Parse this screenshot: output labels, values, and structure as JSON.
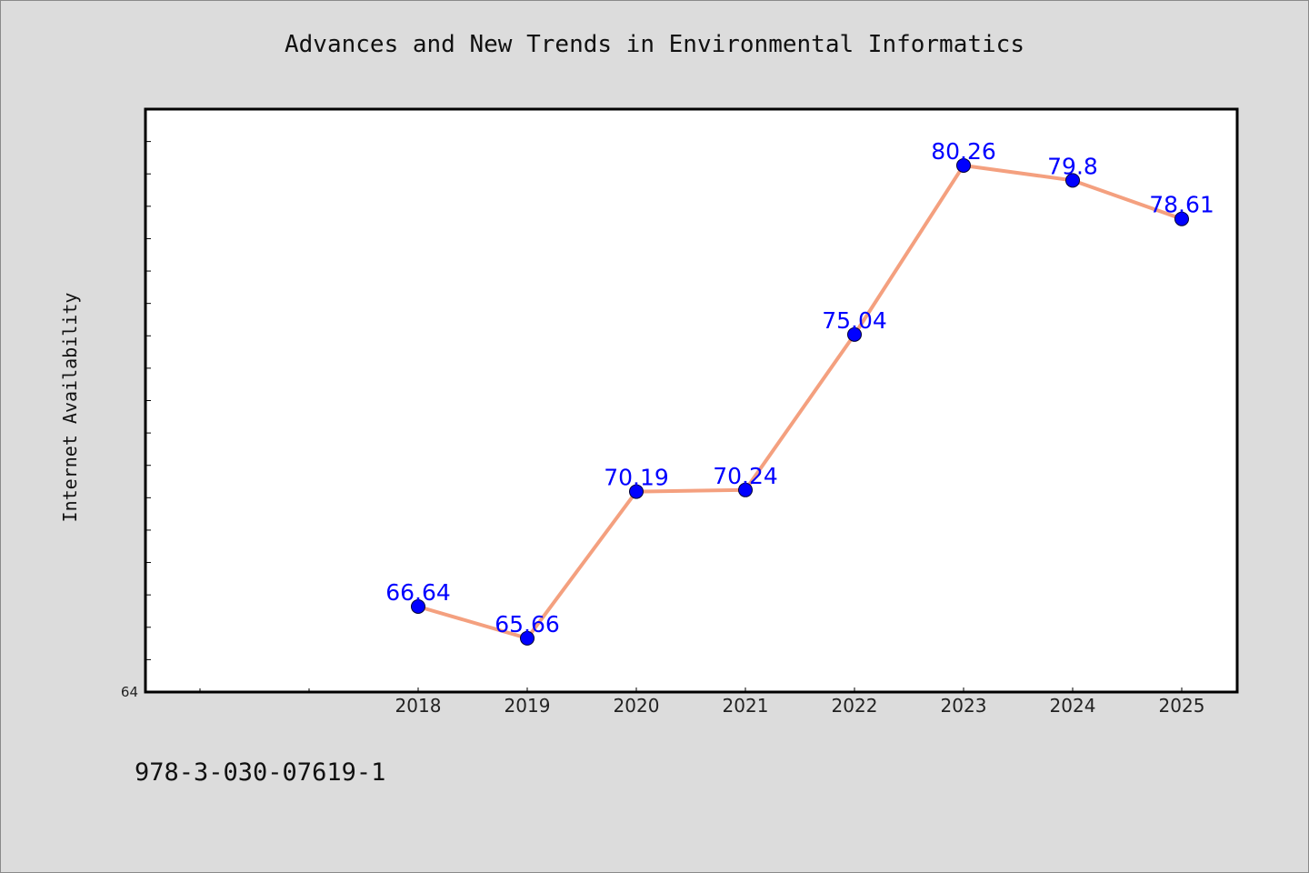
{
  "chart_data": {
    "type": "line",
    "title": "Advances and New Trends in Environmental Informatics",
    "ylabel": "Internet Availability",
    "xlabel": "",
    "categories": [
      "2018",
      "2019",
      "2020",
      "2021",
      "2022",
      "2023",
      "2024",
      "2025"
    ],
    "values": [
      66.64,
      65.66,
      70.19,
      70.24,
      75.04,
      80.26,
      79.8,
      78.61
    ],
    "data_labels": [
      "66.64",
      "65.66",
      "70.19",
      "70.24",
      "75.04",
      "80.26",
      "79.8",
      "78.61"
    ],
    "ylim": [
      64,
      82
    ],
    "y_tick_labels": [
      "64"
    ],
    "grid": false,
    "line_color": "#f4a07f",
    "marker_color": "#0000ff",
    "label_color": "#0000ff"
  },
  "footer": {
    "text": "978-3-030-07619-1"
  }
}
